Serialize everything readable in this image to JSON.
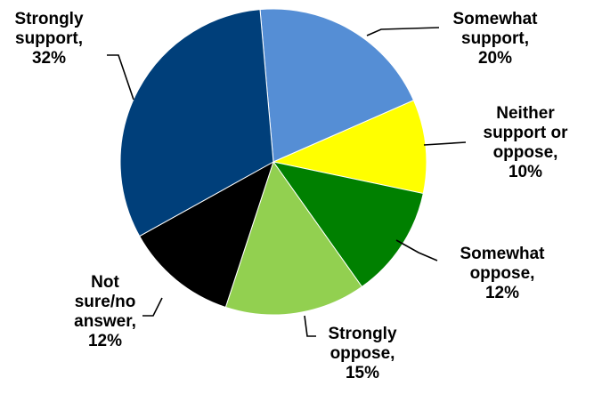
{
  "chart_data": {
    "type": "pie",
    "slices": [
      {
        "label_lines": [
          "Somewhat",
          "support,",
          "20%"
        ],
        "value": 20,
        "color": "#558ED5"
      },
      {
        "label_lines": [
          "Neither",
          "support or",
          "oppose,",
          "10%"
        ],
        "value": 10,
        "color": "#FFFF00"
      },
      {
        "label_lines": [
          "Somewhat",
          "oppose,",
          "12%"
        ],
        "value": 12,
        "color": "#008000"
      },
      {
        "label_lines": [
          "Strongly",
          "oppose,",
          "15%"
        ],
        "value": 15,
        "color": "#92D050"
      },
      {
        "label_lines": [
          "Not",
          "sure/no",
          "answer,",
          "12%"
        ],
        "value": 12,
        "color": "#000000"
      },
      {
        "label_lines": [
          "Strongly",
          "support,",
          "32%"
        ],
        "value": 32,
        "color": "#003F7A"
      }
    ],
    "start_angle_deg": -5,
    "direction": "clockwise"
  }
}
